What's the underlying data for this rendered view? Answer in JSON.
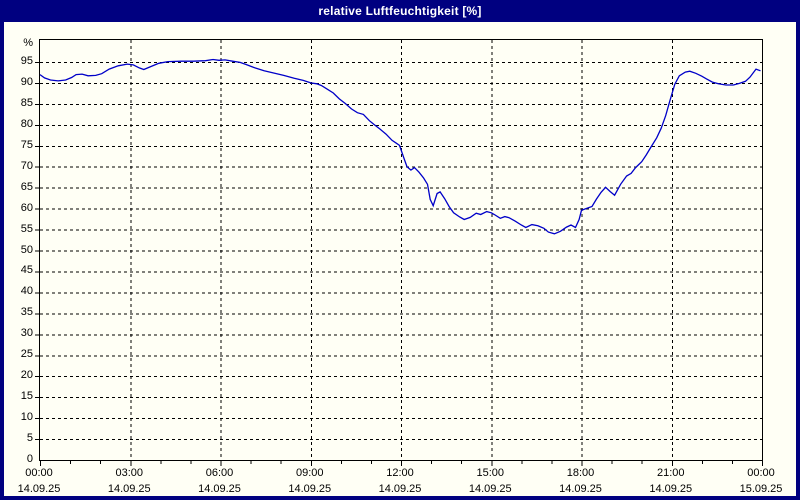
{
  "window": {
    "title": "relative Luftfeuchtigkeit [%]"
  },
  "colors": {
    "titlebar_bg": "#000080",
    "titlebar_text": "#ffffff",
    "frame_border": "#000080",
    "content_bg": "#fffff5",
    "plot_bg": "#fffff5",
    "grid": "#000000",
    "line": "#0000c8",
    "label_text": "#000000"
  },
  "chart_data": {
    "type": "line",
    "title": "relative Luftfeuchtigkeit [%]",
    "ylabel": "%",
    "xlabel": "",
    "x_unit": "hours",
    "ylim": [
      0,
      100.3
    ],
    "xlim_hours": [
      0,
      24
    ],
    "grid": true,
    "grid_style": "dashed",
    "legend": "none",
    "y_ticks": [
      0,
      5,
      10,
      15,
      20,
      25,
      30,
      35,
      40,
      45,
      50,
      55,
      60,
      65,
      70,
      75,
      80,
      85,
      90,
      95
    ],
    "y_unit_label": "%",
    "x_ticks": [
      {
        "hour": 0,
        "time": "00:00",
        "date": "14.09.25"
      },
      {
        "hour": 3,
        "time": "03:00",
        "date": "14.09.25"
      },
      {
        "hour": 6,
        "time": "06:00",
        "date": "14.09.25"
      },
      {
        "hour": 9,
        "time": "09:00",
        "date": "14.09.25"
      },
      {
        "hour": 12,
        "time": "12:00",
        "date": "14.09.25"
      },
      {
        "hour": 15,
        "time": "15:00",
        "date": "14.09.25"
      },
      {
        "hour": 18,
        "time": "18:00",
        "date": "14.09.25"
      },
      {
        "hour": 21,
        "time": "21:00",
        "date": "14.09.25"
      },
      {
        "hour": 24,
        "time": "00:00",
        "date": "15.09.25"
      }
    ],
    "x_minor_tick_step_hours": 1,
    "series": [
      {
        "name": "relative Luftfeuchtigkeit",
        "unit": "%",
        "points": [
          [
            0.0,
            92.0
          ],
          [
            0.15,
            91.2
          ],
          [
            0.35,
            90.7
          ],
          [
            0.6,
            90.5
          ],
          [
            0.85,
            90.7
          ],
          [
            1.05,
            91.3
          ],
          [
            1.2,
            92.0
          ],
          [
            1.4,
            92.1
          ],
          [
            1.6,
            91.7
          ],
          [
            1.85,
            91.8
          ],
          [
            2.05,
            92.2
          ],
          [
            2.3,
            93.3
          ],
          [
            2.6,
            94.1
          ],
          [
            2.9,
            94.5
          ],
          [
            3.1,
            94.3
          ],
          [
            3.3,
            93.6
          ],
          [
            3.45,
            93.2
          ],
          [
            3.65,
            93.8
          ],
          [
            3.95,
            94.7
          ],
          [
            4.25,
            95.1
          ],
          [
            4.7,
            95.2
          ],
          [
            5.1,
            95.2
          ],
          [
            5.5,
            95.3
          ],
          [
            5.75,
            95.6
          ],
          [
            5.95,
            95.4
          ],
          [
            6.15,
            95.5
          ],
          [
            6.4,
            95.2
          ],
          [
            6.65,
            94.9
          ],
          [
            6.85,
            94.4
          ],
          [
            7.1,
            93.7
          ],
          [
            7.45,
            92.9
          ],
          [
            7.75,
            92.4
          ],
          [
            8.1,
            91.8
          ],
          [
            8.45,
            91.1
          ],
          [
            8.75,
            90.6
          ],
          [
            9.0,
            90.0
          ],
          [
            9.2,
            89.8
          ],
          [
            9.35,
            89.4
          ],
          [
            9.55,
            88.5
          ],
          [
            9.75,
            87.6
          ],
          [
            9.95,
            86.2
          ],
          [
            10.15,
            85.1
          ],
          [
            10.35,
            83.8
          ],
          [
            10.55,
            82.9
          ],
          [
            10.75,
            82.5
          ],
          [
            10.95,
            81.0
          ],
          [
            11.1,
            80.1
          ],
          [
            11.3,
            79.0
          ],
          [
            11.5,
            77.8
          ],
          [
            11.7,
            76.3
          ],
          [
            11.85,
            75.6
          ],
          [
            11.95,
            75.1
          ],
          [
            12.1,
            72.0
          ],
          [
            12.2,
            70.0
          ],
          [
            12.33,
            69.2
          ],
          [
            12.45,
            69.8
          ],
          [
            12.6,
            68.7
          ],
          [
            12.75,
            67.3
          ],
          [
            12.88,
            65.8
          ],
          [
            12.97,
            62.2
          ],
          [
            13.07,
            60.7
          ],
          [
            13.2,
            63.6
          ],
          [
            13.3,
            64.0
          ],
          [
            13.45,
            62.4
          ],
          [
            13.6,
            60.5
          ],
          [
            13.75,
            59.0
          ],
          [
            13.95,
            58.0
          ],
          [
            14.1,
            57.4
          ],
          [
            14.3,
            57.9
          ],
          [
            14.5,
            58.9
          ],
          [
            14.65,
            58.6
          ],
          [
            14.85,
            59.3
          ],
          [
            15.0,
            59.0
          ],
          [
            15.1,
            58.6
          ],
          [
            15.3,
            57.7
          ],
          [
            15.45,
            58.1
          ],
          [
            15.6,
            57.8
          ],
          [
            15.8,
            57.0
          ],
          [
            16.0,
            56.1
          ],
          [
            16.15,
            55.5
          ],
          [
            16.35,
            56.2
          ],
          [
            16.55,
            55.9
          ],
          [
            16.75,
            55.3
          ],
          [
            16.9,
            54.4
          ],
          [
            17.1,
            54.0
          ],
          [
            17.3,
            54.6
          ],
          [
            17.5,
            55.6
          ],
          [
            17.65,
            56.1
          ],
          [
            17.8,
            55.5
          ],
          [
            17.92,
            57.4
          ],
          [
            18.0,
            59.6
          ],
          [
            18.15,
            60.0
          ],
          [
            18.35,
            60.5
          ],
          [
            18.5,
            62.3
          ],
          [
            18.65,
            63.9
          ],
          [
            18.8,
            65.1
          ],
          [
            18.95,
            64.1
          ],
          [
            19.1,
            63.2
          ],
          [
            19.3,
            65.8
          ],
          [
            19.5,
            67.8
          ],
          [
            19.65,
            68.4
          ],
          [
            19.8,
            69.8
          ],
          [
            20.0,
            71.2
          ],
          [
            20.15,
            72.8
          ],
          [
            20.3,
            74.6
          ],
          [
            20.5,
            76.9
          ],
          [
            20.65,
            79.2
          ],
          [
            20.8,
            82.2
          ],
          [
            20.95,
            86.0
          ],
          [
            21.1,
            89.7
          ],
          [
            21.25,
            91.7
          ],
          [
            21.45,
            92.6
          ],
          [
            21.6,
            92.8
          ],
          [
            21.8,
            92.3
          ],
          [
            22.0,
            91.6
          ],
          [
            22.15,
            91.0
          ],
          [
            22.35,
            90.2
          ],
          [
            22.55,
            89.8
          ],
          [
            22.8,
            89.5
          ],
          [
            23.05,
            89.5
          ],
          [
            23.25,
            89.9
          ],
          [
            23.45,
            90.4
          ],
          [
            23.6,
            91.4
          ],
          [
            23.8,
            93.3
          ],
          [
            23.95,
            92.9
          ]
        ]
      }
    ]
  }
}
